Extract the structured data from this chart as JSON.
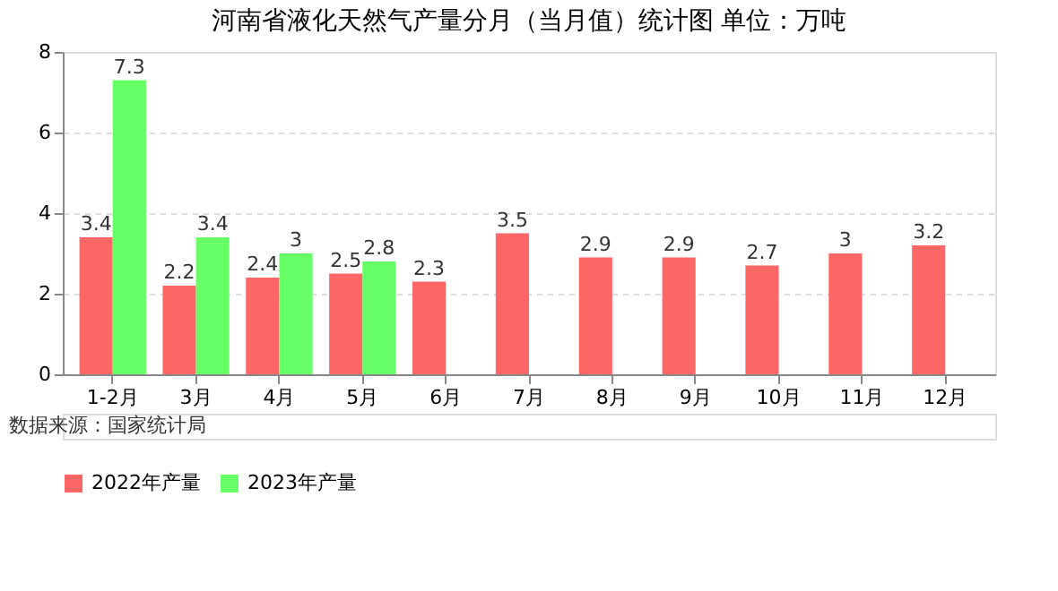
{
  "chart_data": {
    "type": "bar",
    "title": "河南省液化天然气产量分月（当月值）统计图 单位：万吨",
    "categories": [
      "1-2月",
      "3月",
      "4月",
      "5月",
      "6月",
      "7月",
      "8月",
      "9月",
      "10月",
      "11月",
      "12月"
    ],
    "series": [
      {
        "name": "2022年产量",
        "color": "#ff6666",
        "values": [
          3.4,
          2.2,
          2.4,
          2.5,
          2.3,
          3.5,
          2.9,
          2.9,
          2.7,
          3,
          3.2
        ]
      },
      {
        "name": "2023年产量",
        "color": "#66ff66",
        "values": [
          7.3,
          3.4,
          3,
          2.8,
          null,
          null,
          null,
          null,
          null,
          null,
          null
        ]
      }
    ],
    "ylim": [
      0,
      8
    ],
    "yticks": [
      0,
      2,
      4,
      6,
      8
    ],
    "grid": "y",
    "legend": "bottom",
    "data_labels": true,
    "annotations": [
      "数据来源：国家统计局"
    ]
  }
}
